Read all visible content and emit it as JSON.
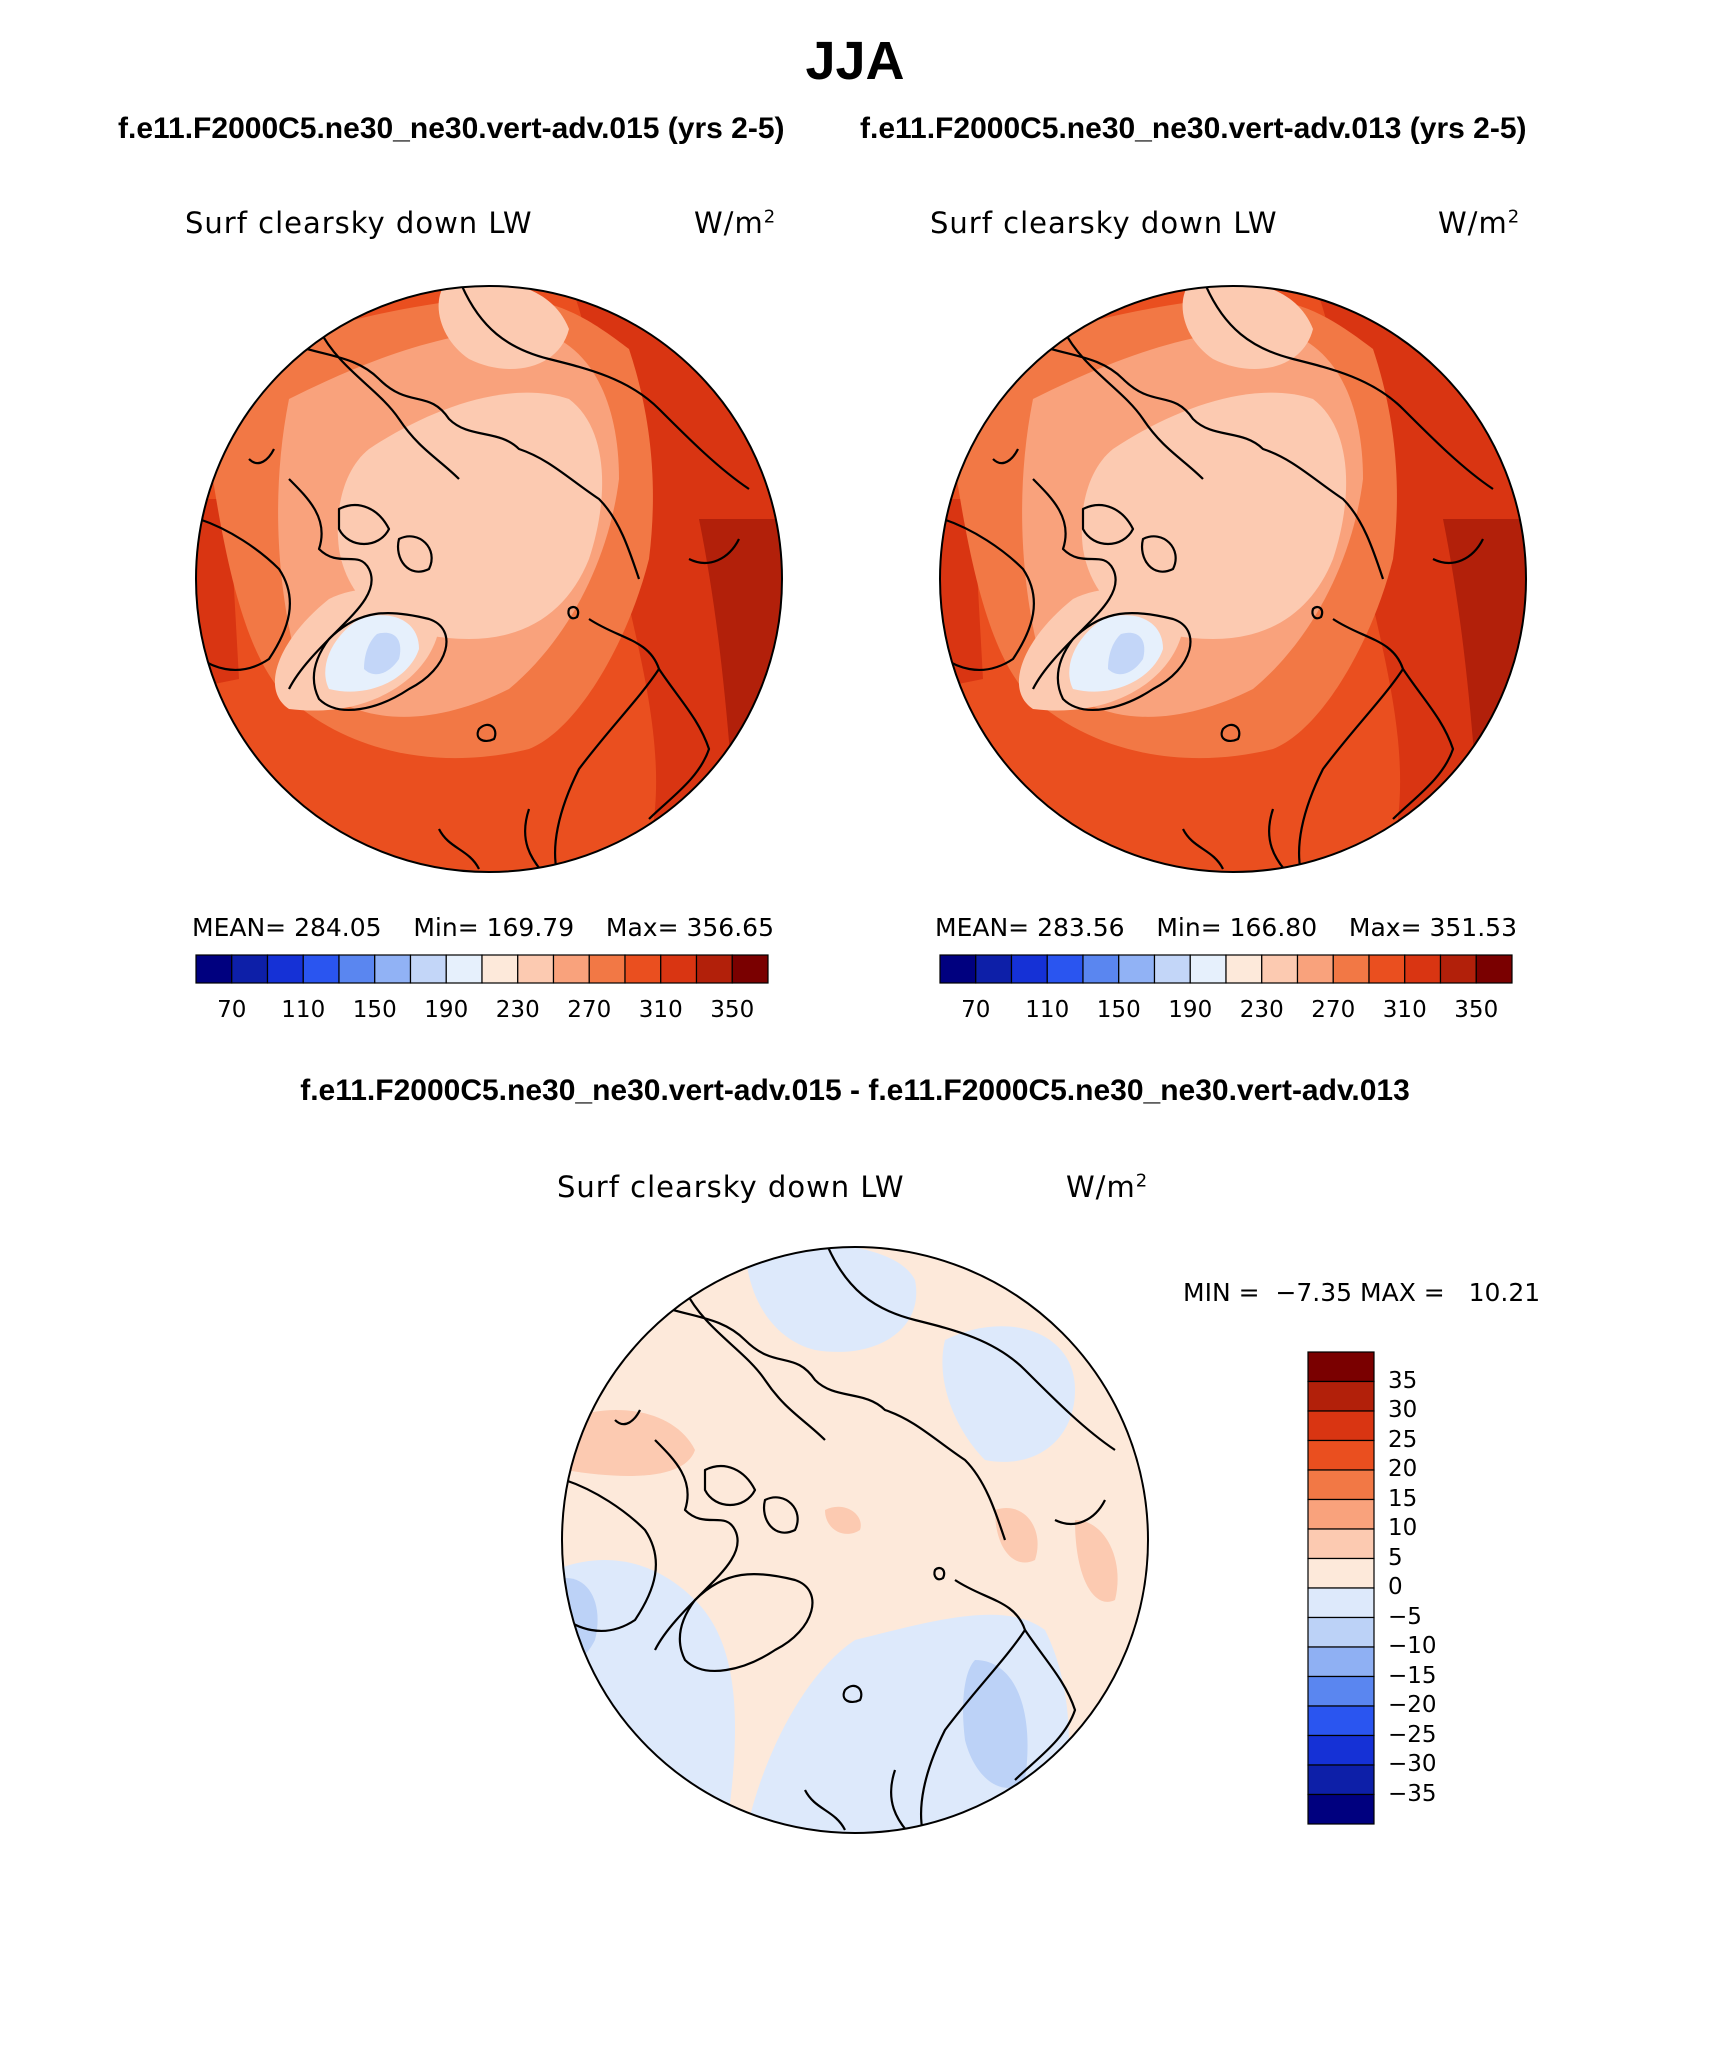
{
  "figure": {
    "season": "JJA",
    "left_case_title": "f.e11.F2000C5.ne30_ne30.vert-adv.015 (yrs 2-5)",
    "right_case_title": "f.e11.F2000C5.ne30_ne30.vert-adv.013 (yrs 2-5)",
    "diff_title": "f.e11.F2000C5.ne30_ne30.vert-adv.015 - f.e11.F2000C5.ne30_ne30.vert-adv.013"
  },
  "panels": {
    "left": {
      "variable": "Surf clearsky down LW",
      "units_base": "W/m",
      "units_exp": "2",
      "mean_label": "MEAN=",
      "mean": "284.05",
      "min_label": "Min=",
      "min": "169.79",
      "max_label": "Max=",
      "max": "356.65"
    },
    "right": {
      "variable": "Surf clearsky down LW",
      "units_base": "W/m",
      "units_exp": "2",
      "mean_label": "MEAN=",
      "mean": "283.56",
      "min_label": "Min=",
      "min": "166.80",
      "max_label": "Max=",
      "max": "351.53"
    },
    "diff": {
      "variable": "Surf clearsky down LW",
      "units_base": "W/m",
      "units_exp": "2",
      "min_label": "MIN =",
      "min": "−7.35",
      "max_label": "MAX =",
      "max": "10.21"
    }
  },
  "colorbars": {
    "main": {
      "colors": [
        "#00007f",
        "#0d1fa8",
        "#1531d6",
        "#2a55f0",
        "#5a86f0",
        "#91b2f5",
        "#c3d6f8",
        "#e6f0fc",
        "#fde9da",
        "#fccab1",
        "#f9a27c",
        "#f27845",
        "#ea4f1f",
        "#d93512",
        "#b2200a",
        "#7a0000"
      ],
      "tick_labels": [
        "70",
        "110",
        "150",
        "190",
        "230",
        "270",
        "310",
        "350"
      ]
    },
    "diff": {
      "colors_top_to_bottom": [
        "#7a0000",
        "#b2200a",
        "#d93512",
        "#ea4f1f",
        "#f27845",
        "#f9a27c",
        "#fccab1",
        "#fde9da",
        "#dde9fb",
        "#bcd2f7",
        "#8fb0f3",
        "#5a86f0",
        "#2a55f0",
        "#1531d6",
        "#0d1fa8",
        "#00007f"
      ],
      "tick_labels": [
        "35",
        "30",
        "25",
        "20",
        "15",
        "10",
        "5",
        "0",
        "−5",
        "−10",
        "−15",
        "−20",
        "−25",
        "−30",
        "−35"
      ]
    }
  }
}
